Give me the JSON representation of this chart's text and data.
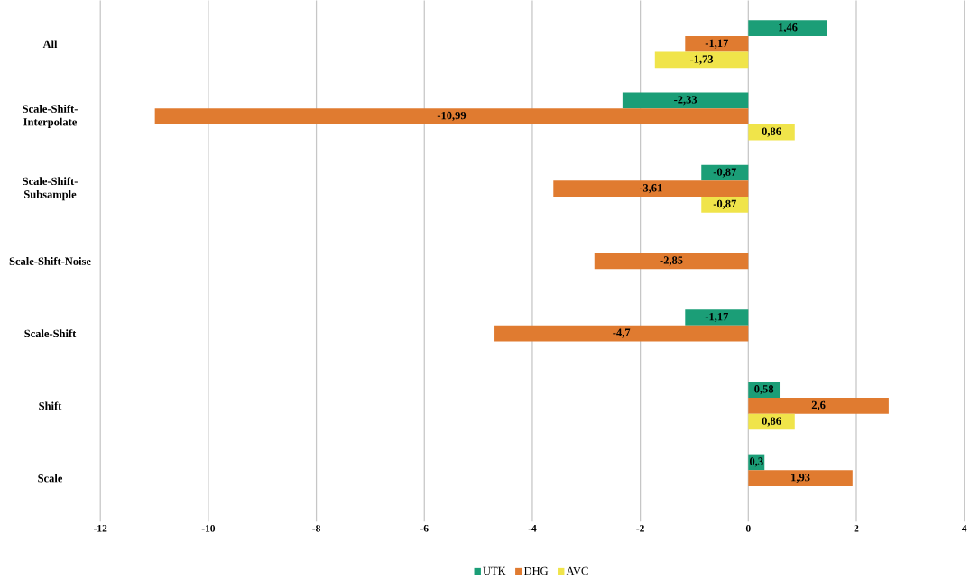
{
  "chart_data": {
    "type": "bar",
    "orientation": "horizontal",
    "categories": [
      "All",
      "Scale-Shift-Interpolate",
      "Scale-Shift-Subsample",
      "Scale-Shift-Noise",
      "Scale-Shift",
      "Shift",
      "Scale"
    ],
    "series": [
      {
        "name": "UTK",
        "color": "#1b9e77",
        "values": [
          1.46,
          -2.33,
          -0.87,
          null,
          -1.17,
          0.58,
          0.3
        ],
        "value_labels": [
          "1,46",
          "-2,33",
          "-0,87",
          null,
          "-1,17",
          "0,58",
          "0,3"
        ]
      },
      {
        "name": "DHG",
        "color": "#e07b30",
        "values": [
          -1.17,
          -10.99,
          -3.61,
          -2.85,
          -4.7,
          2.6,
          1.93
        ],
        "value_labels": [
          "-1,17",
          "-10,99",
          "-3,61",
          "-2,85",
          "-4,7",
          "2,6",
          "1,93"
        ]
      },
      {
        "name": "AVC",
        "color": "#f0e44a",
        "values": [
          -1.73,
          0.86,
          -0.87,
          null,
          null,
          0.86,
          null
        ],
        "value_labels": [
          "-1,73",
          "0,86",
          "-0,87",
          null,
          null,
          "0,86",
          null
        ]
      }
    ],
    "xlim": [
      -12,
      4
    ],
    "xticks": [
      -12,
      -10,
      -8,
      -6,
      -4,
      -2,
      0,
      2,
      4
    ],
    "grid": "x",
    "legend": "bottom"
  }
}
